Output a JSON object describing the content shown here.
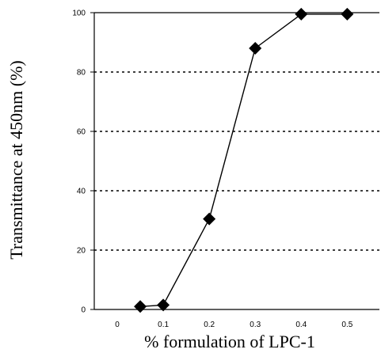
{
  "chart_data": {
    "type": "line",
    "title": "",
    "xlabel": "% formulation of LPC-1",
    "ylabel": "Transmittance at 450nm (%)",
    "x": [
      0.05,
      0.1,
      0.2,
      0.3,
      0.4,
      0.5
    ],
    "series": [
      {
        "values": [
          1,
          1.5,
          30.5,
          88,
          99.5,
          99.5
        ],
        "color": "#000000",
        "marker": "diamond"
      }
    ],
    "xlim": [
      -0.05,
      0.57
    ],
    "ylim": [
      0,
      100
    ],
    "xticks": [
      0,
      0.1,
      0.2,
      0.3,
      0.4,
      0.5
    ],
    "xtick_labels": [
      "0",
      "0.1",
      "0.2",
      "0.3",
      "0.4",
      "0.5"
    ],
    "yticks": [
      0,
      20,
      40,
      60,
      80,
      100
    ],
    "ytick_labels": [
      "0",
      "20",
      "40",
      "60",
      "80",
      "100"
    ],
    "grid": "horizontal-dotted",
    "legend": "none"
  }
}
